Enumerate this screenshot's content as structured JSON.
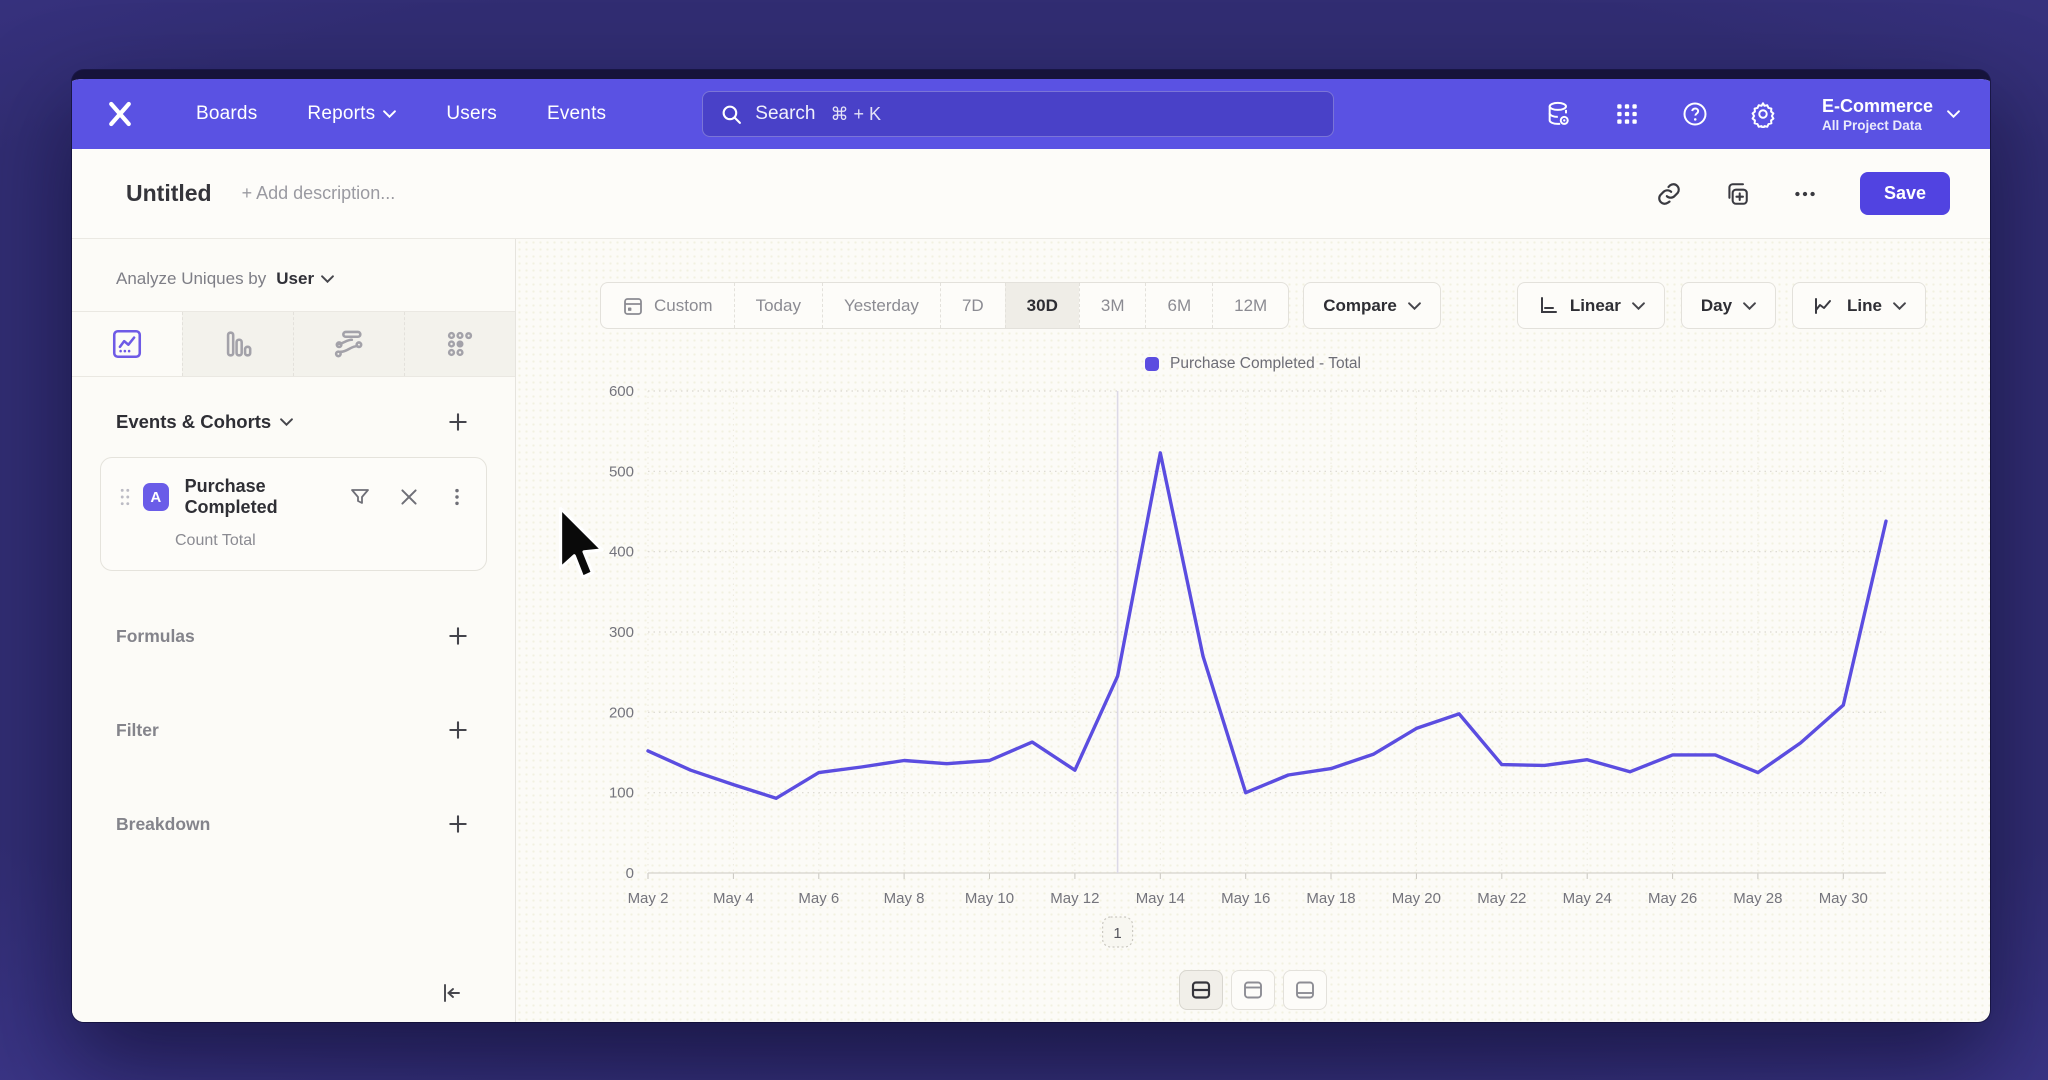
{
  "window": {
    "nav": {
      "logo": "mixpanel",
      "items": [
        {
          "label": "Boards",
          "chevron": false
        },
        {
          "label": "Reports",
          "chevron": true
        },
        {
          "label": "Users",
          "chevron": false
        },
        {
          "label": "Events",
          "chevron": false
        }
      ],
      "search": {
        "placeholder": "Search",
        "shortcut": "⌘ + K"
      },
      "project": {
        "name": "E-Commerce",
        "scope": "All Project Data"
      }
    },
    "header": {
      "title": "Untitled",
      "description_placeholder": "+ Add description...",
      "save_label": "Save"
    },
    "sidebar": {
      "analyze_prefix": "Analyze Uniques by",
      "analyze_value": "User",
      "events_section_label": "Events & Cohorts",
      "event_card": {
        "badge": "A",
        "name": "Purchase Completed",
        "metric": "Count Total"
      },
      "formulas_label": "Formulas",
      "filter_label": "Filter",
      "breakdown_label": "Breakdown"
    },
    "toolbar": {
      "date_ranges": [
        "Custom",
        "Today",
        "Yesterday",
        "7D",
        "30D",
        "3M",
        "6M",
        "12M"
      ],
      "active_range": "30D",
      "compare_label": "Compare",
      "scale_label": "Linear",
      "interval_label": "Day",
      "chart_type_label": "Line"
    }
  },
  "chart_data": {
    "type": "line",
    "legend": "Purchase Completed - Total",
    "legend_position": "top-center",
    "grid": "horizontal-dotted",
    "x": [
      "May 2",
      "May 3",
      "May 4",
      "May 5",
      "May 6",
      "May 7",
      "May 8",
      "May 9",
      "May 10",
      "May 11",
      "May 12",
      "May 13",
      "May 14",
      "May 15",
      "May 16",
      "May 17",
      "May 18",
      "May 19",
      "May 20",
      "May 21",
      "May 22",
      "May 23",
      "May 24",
      "May 25",
      "May 26",
      "May 27",
      "May 28",
      "May 29",
      "May 30",
      "May 31"
    ],
    "x_label_every": 2,
    "series": [
      {
        "name": "Purchase Completed - Total",
        "color": "#5b4de0",
        "values": [
          152,
          128,
          110,
          93,
          125,
          132,
          140,
          136,
          140,
          163,
          128,
          245,
          523,
          270,
          100,
          122,
          130,
          148,
          180,
          198,
          135,
          134,
          141,
          126,
          147,
          147,
          125,
          162,
          209,
          438
        ]
      }
    ],
    "ylim": [
      0,
      600
    ],
    "yticks": [
      0,
      100,
      200,
      300,
      400,
      500,
      600
    ],
    "annotations": [
      {
        "label": "1",
        "x": "May 13"
      }
    ]
  }
}
